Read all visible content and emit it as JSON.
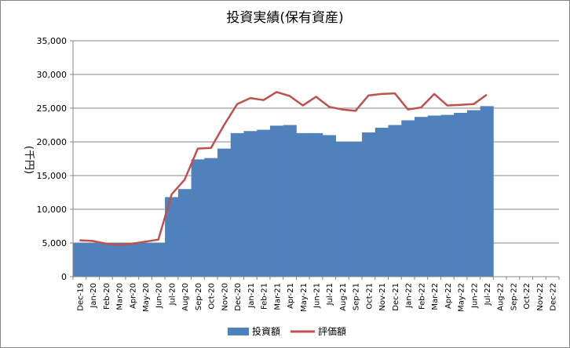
{
  "chart_data": {
    "type": "area+line",
    "title": "投資実績(保有資産)",
    "xlabel": "",
    "ylabel": "(千円)",
    "ylim": [
      0,
      35000
    ],
    "yticks": [
      0,
      5000,
      10000,
      15000,
      20000,
      25000,
      30000,
      35000
    ],
    "ytick_labels": [
      "0",
      "5,000",
      "10,000",
      "15,000",
      "20,000",
      "25,000",
      "30,000",
      "35,000"
    ],
    "categories": [
      "Dec-19",
      "Jan-20",
      "Feb-20",
      "Mar-20",
      "Apr-20",
      "May-20",
      "Jun-20",
      "Jul-20",
      "Aug-20",
      "Sep-20",
      "Oct-20",
      "Nov-20",
      "Dec-20",
      "Jan-21",
      "Feb-21",
      "Mar-21",
      "Apr-21",
      "May-21",
      "Jun-21",
      "Jul-21",
      "Aug-21",
      "Sep-21",
      "Oct-21",
      "Nov-21",
      "Dec-21",
      "Jan-22",
      "Feb-22",
      "Mar-22",
      "Apr-22",
      "May-22",
      "Jun-22",
      "Jul-22",
      "Aug-22",
      "Sep-22",
      "Oct-22",
      "Nov-22",
      "Dec-22"
    ],
    "series": [
      {
        "name": "投資額",
        "kind": "area",
        "color": "#4f81bd",
        "values": [
          5000,
          5000,
          5000,
          5000,
          5000,
          5000,
          5000,
          11800,
          13000,
          17400,
          17600,
          19000,
          21300,
          21600,
          21800,
          22400,
          22500,
          21300,
          21300,
          21000,
          20000,
          20000,
          21400,
          22100,
          22500,
          23200,
          23700,
          23900,
          24000,
          24300,
          24700,
          25300,
          null,
          null,
          null,
          null,
          null
        ]
      },
      {
        "name": "評価額",
        "kind": "line",
        "color": "#c0504d",
        "values": [
          5400,
          5300,
          4900,
          4700,
          4900,
          5200,
          5500,
          12200,
          14400,
          19000,
          19100,
          22500,
          25600,
          26500,
          26200,
          27400,
          26800,
          25400,
          26700,
          25200,
          24800,
          24600,
          26900,
          27100,
          27200,
          24800,
          25100,
          27100,
          25400,
          25500,
          25600,
          27000,
          null,
          null,
          null,
          null,
          null
        ]
      }
    ],
    "legend_position": "bottom",
    "grid": "horizontal"
  }
}
